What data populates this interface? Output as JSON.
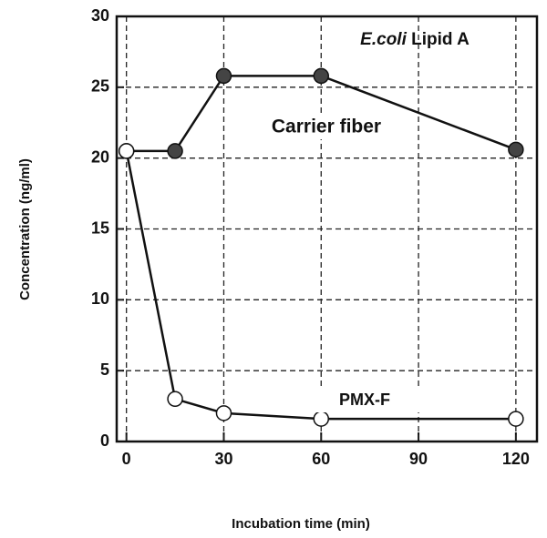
{
  "chart_data": {
    "type": "line",
    "xlabel": "Incubation time (min)",
    "ylabel": "Concentration  (ng/ml)",
    "annotation": {
      "italic": "E.coli",
      "rest": "Lipid A"
    },
    "x": [
      0,
      15,
      30,
      60,
      120
    ],
    "series": [
      {
        "name": "Carrier fiber",
        "color": "#444444",
        "values": [
          20.5,
          20.5,
          25.8,
          25.8,
          20.6
        ]
      },
      {
        "name": "PMX-F",
        "color": "#ffffff",
        "values": [
          20.5,
          3.0,
          2.0,
          1.6,
          1.6
        ]
      }
    ],
    "xlim": [
      -3,
      126.5
    ],
    "xticks": [
      0,
      30,
      60,
      90,
      120
    ],
    "ylim": [
      0,
      30
    ],
    "yticks": [
      0,
      5,
      10,
      15,
      20,
      25,
      30
    ],
    "grid": true
  }
}
